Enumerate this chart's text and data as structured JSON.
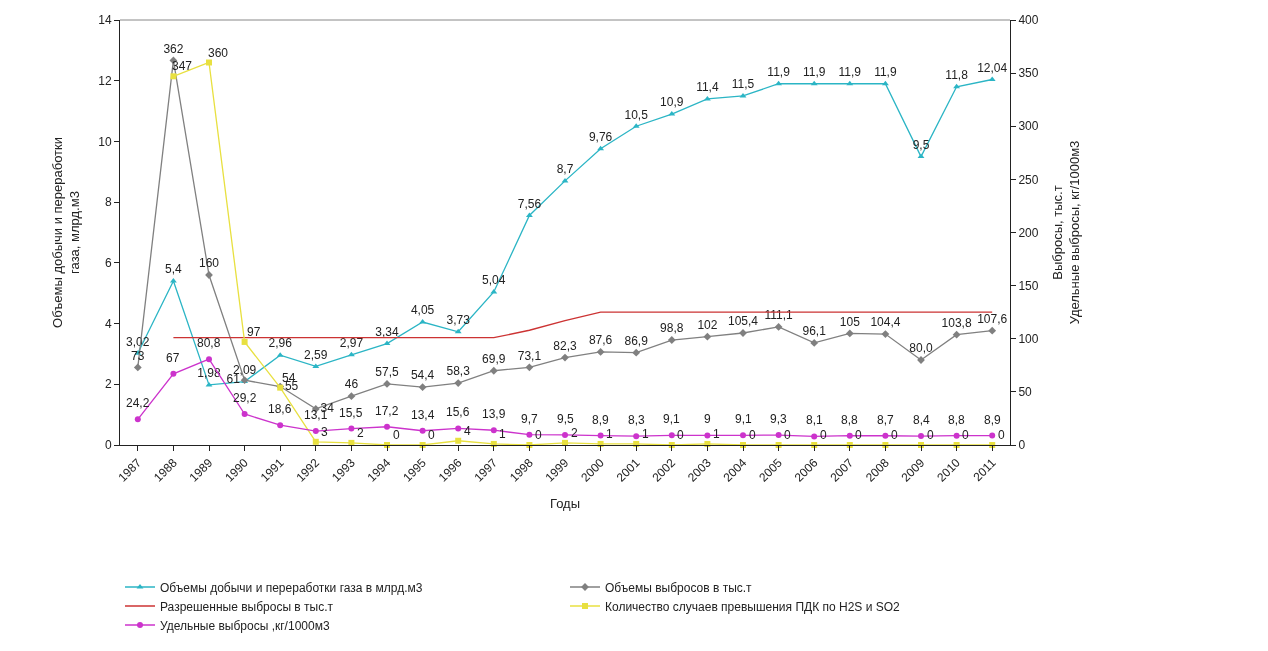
{
  "chart_data": {
    "type": "line",
    "xlabel": "Годы",
    "ylabel": "Объемы добычи и переработки\nгаза, млрд.м3",
    "y2label": "Выбросы, тыс.т\nУдельные выбросы, кг/1000м3",
    "categories": [
      "1987",
      "1988",
      "1989",
      "1990",
      "1991",
      "1992",
      "1993",
      "1994",
      "1995",
      "1996",
      "1997",
      "1998",
      "1999",
      "2000",
      "2001",
      "2002",
      "2003",
      "2004",
      "2005",
      "2006",
      "2007",
      "2008",
      "2009",
      "2010",
      "2011"
    ],
    "ylim": [
      0,
      14
    ],
    "yticks": [
      0,
      2,
      4,
      6,
      8,
      10,
      12,
      14
    ],
    "y2lim": [
      0,
      400
    ],
    "y2ticks": [
      0,
      50,
      100,
      150,
      200,
      250,
      300,
      350,
      400
    ],
    "legend": "bottom",
    "series": [
      {
        "name": "Объемы добычи и переработки газа в млрд.м3",
        "color": "#2bb5c5",
        "marker": "triangle",
        "values": [
          3.02,
          5.4,
          1.98,
          2.09,
          2.96,
          2.59,
          2.97,
          3.34,
          4.05,
          3.73,
          5.04,
          7.56,
          8.7,
          9.76,
          10.5,
          10.9,
          11.4,
          11.5,
          11.9,
          11.9,
          11.9,
          11.9,
          9.5,
          11.8,
          12.04
        ],
        "value_labels": [
          "3,02",
          "5,4",
          "1,98",
          "2,09",
          "2,96",
          "2,59",
          "2,97",
          "3,34",
          "4,05",
          "3,73",
          "5,04",
          "7,56",
          "8,7",
          "9,76",
          "10,5",
          "10,9",
          "11,4",
          "11,5",
          "11,9",
          "11,9",
          "11,9",
          "11,9",
          "9,5",
          "11,8",
          "12,04"
        ]
      },
      {
        "name": "Объемы выбросов в тыс.т",
        "color": "#808080",
        "marker": "diamond",
        "axis": "y2",
        "values": [
          73,
          362,
          160,
          61,
          55,
          34,
          46,
          57.5,
          54.4,
          58.3,
          69.9,
          73.1,
          82.3,
          87.6,
          86.9,
          98.8,
          102,
          105.4,
          111.1,
          96.1,
          105,
          104.4,
          80.0,
          103.8,
          107.6
        ],
        "value_labels": [
          "73",
          "362",
          "160",
          "61",
          "55",
          "34",
          "46",
          "57,5",
          "54,4",
          "58,3",
          "69,9",
          "73,1",
          "82,3",
          "87,6",
          "86,9",
          "98,8",
          "102",
          "105,4",
          "111,1",
          "96,1",
          "105",
          "104,4",
          "80,0",
          "103,8",
          "107,6"
        ]
      },
      {
        "name": "Разрешенные выбросы в тыс.т",
        "color": "#cc3333",
        "marker": "none",
        "axis": "y2",
        "values": [
          null,
          101,
          101,
          101,
          101,
          101,
          101,
          101,
          101,
          101,
          101,
          108,
          117,
          125,
          125,
          125,
          125,
          125,
          125,
          125,
          125,
          125,
          125,
          125,
          125
        ]
      },
      {
        "name": "Количество случаев превышения ПДК по H2S и SO2",
        "color": "#e8e040",
        "marker": "square",
        "axis": "y2",
        "values": [
          null,
          347,
          360,
          97,
          54,
          3,
          2,
          0,
          0,
          4,
          1,
          0,
          2,
          1,
          1,
          0,
          1,
          0,
          0,
          0,
          0,
          0,
          0,
          0,
          0
        ],
        "value_labels": [
          null,
          "347",
          "360",
          "97",
          "54",
          "3",
          "2",
          "0",
          "0",
          "4",
          "1",
          "0",
          "2",
          "1",
          "1",
          "0",
          "1",
          "0",
          "0",
          "0",
          "0",
          "0",
          "0",
          "0",
          "0"
        ]
      },
      {
        "name": "Удельные выбросы ,кг/1000м3",
        "color": "#cc33cc",
        "marker": "circle",
        "axis": "y2",
        "values": [
          24.2,
          67,
          80.8,
          29.2,
          18.6,
          13.1,
          15.5,
          17.2,
          13.4,
          15.6,
          13.9,
          9.7,
          9.5,
          8.9,
          8.3,
          9.1,
          9,
          9.1,
          9.3,
          8.1,
          8.8,
          8.7,
          8.4,
          8.8,
          8.9
        ],
        "value_labels": [
          "24,2",
          "67",
          "80,8",
          "29,2",
          "18,6",
          "13,1",
          "15,5",
          "17,2",
          "13,4",
          "15,6",
          "13,9",
          "9,7",
          "9,5",
          "8,9",
          "8,3",
          "9,1",
          "9",
          "9,1",
          "9,3",
          "8,1",
          "8,8",
          "8,7",
          "8,4",
          "8,8",
          "8,9"
        ]
      }
    ]
  }
}
